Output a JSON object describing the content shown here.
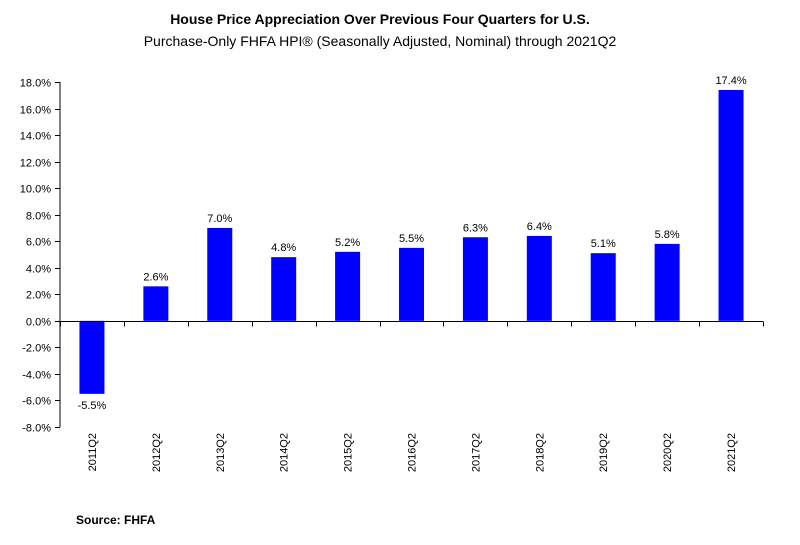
{
  "chart_data": {
    "type": "bar",
    "title": "House Price Appreciation Over Previous Four Quarters for U.S.",
    "subtitle": "Purchase-Only FHFA HPI® (Seasonally Adjusted, Nominal) through 2021Q2",
    "categories": [
      "2011Q2",
      "2012Q2",
      "2013Q2",
      "2014Q2",
      "2015Q2",
      "2016Q2",
      "2017Q2",
      "2018Q2",
      "2019Q2",
      "2020Q2",
      "2021Q2"
    ],
    "values": [
      -5.5,
      2.6,
      7.0,
      4.8,
      5.2,
      5.5,
      6.3,
      6.4,
      5.1,
      5.8,
      17.4
    ],
    "data_labels": [
      "-5.5%",
      "2.6%",
      "7.0%",
      "4.8%",
      "5.2%",
      "5.5%",
      "6.3%",
      "6.4%",
      "5.1%",
      "5.8%",
      "17.4%"
    ],
    "xlabel": "",
    "ylabel": "",
    "ylim": [
      -8,
      18
    ],
    "y_ticks": [
      18,
      16,
      14,
      12,
      10,
      8,
      6,
      4,
      2,
      0,
      -2,
      -4,
      -6,
      -8
    ],
    "y_tick_labels": [
      "18.0%",
      "16.0%",
      "14.0%",
      "12.0%",
      "10.0%",
      "8.0%",
      "6.0%",
      "4.0%",
      "2.0%",
      "0.0%",
      "-2.0%",
      "-4.0%",
      "-6.0%",
      "-8.0%"
    ],
    "grid": false,
    "bar_color": "#0000FF",
    "source": "Source:  FHFA"
  }
}
